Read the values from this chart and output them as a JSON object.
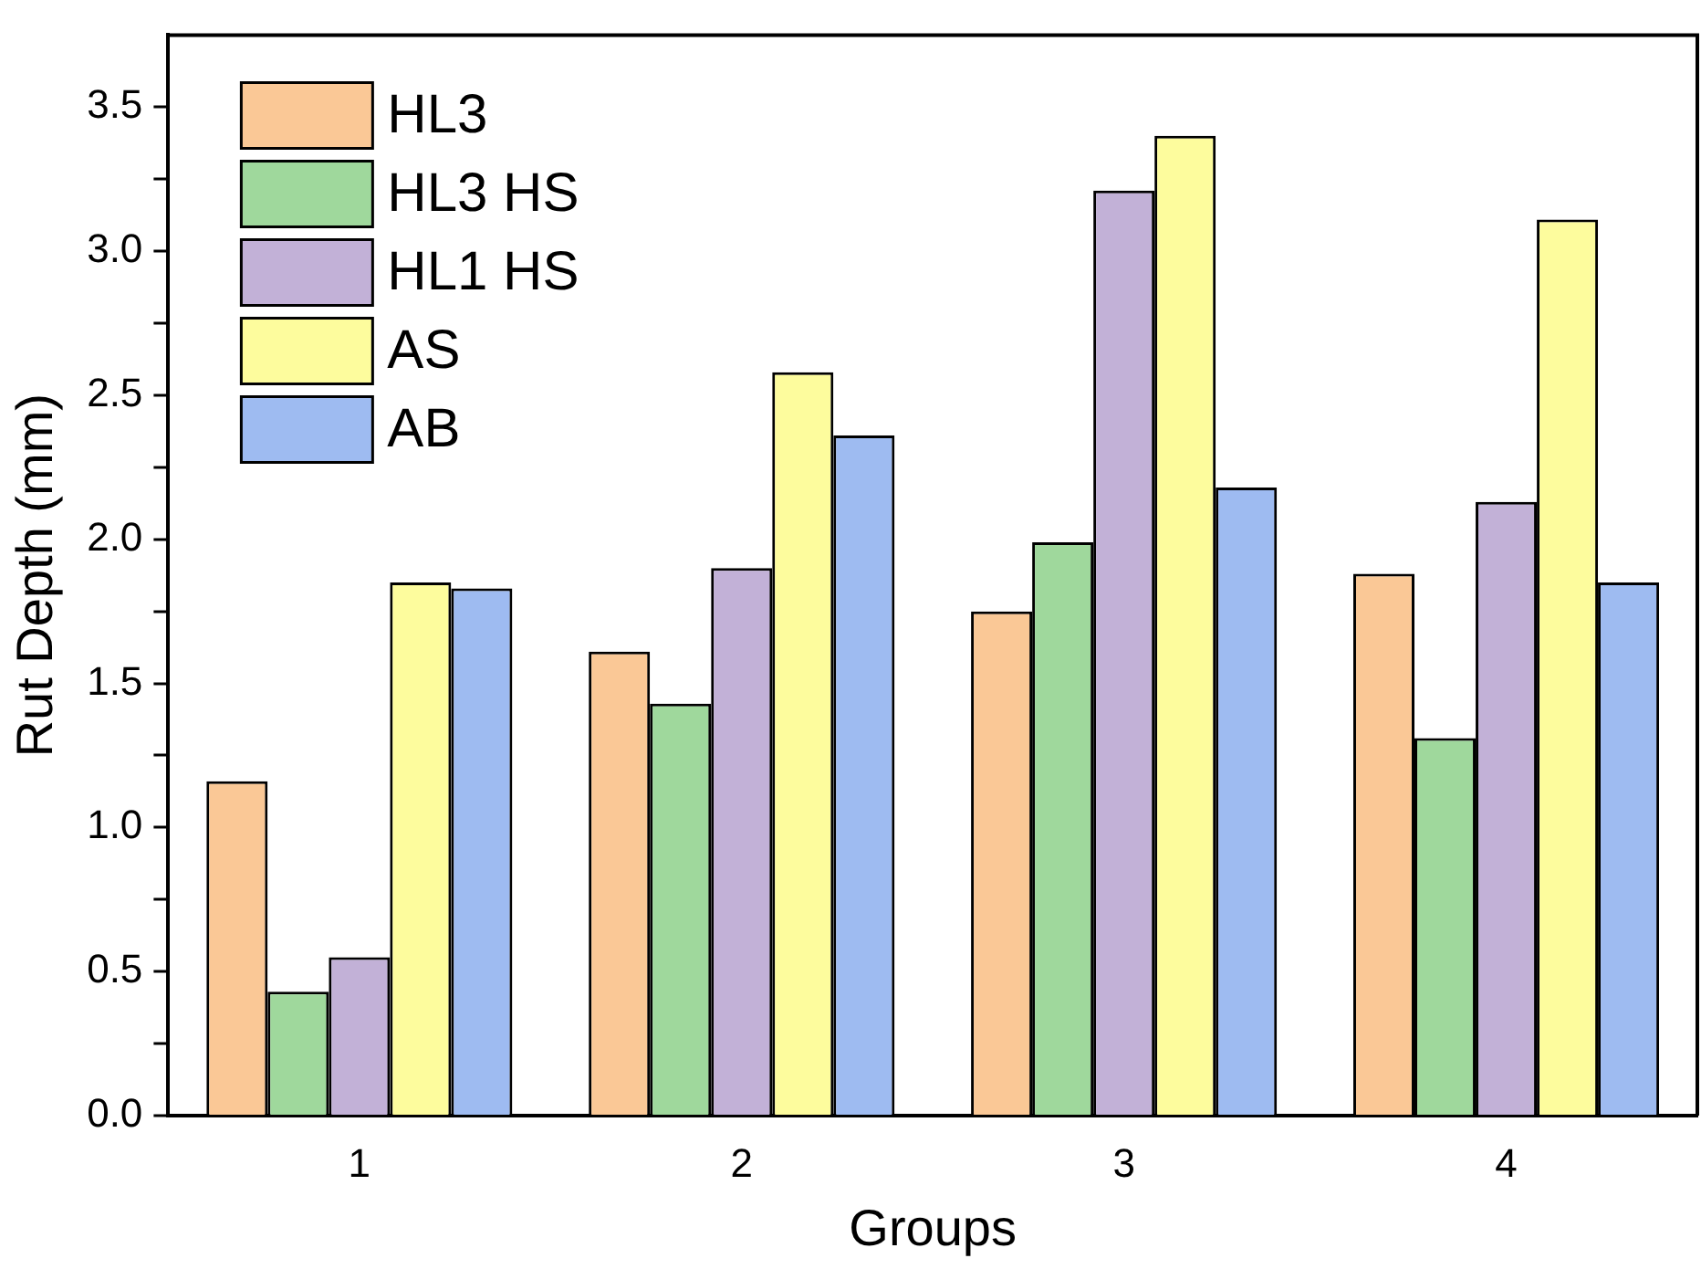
{
  "chart_data": {
    "type": "bar",
    "xlabel": "Groups",
    "ylabel": "Rut Depth (mm)",
    "categories": [
      "1",
      "2",
      "3",
      "4"
    ],
    "series": [
      {
        "name": "HL3",
        "color": "#fac896",
        "values": [
          1.16,
          1.61,
          1.75,
          1.88
        ]
      },
      {
        "name": "HL3 HS",
        "color": "#9fd89c",
        "values": [
          0.43,
          1.43,
          1.99,
          1.31
        ]
      },
      {
        "name": "HL1 HS",
        "color": "#c2b1d7",
        "values": [
          0.55,
          1.9,
          3.21,
          2.13
        ]
      },
      {
        "name": "AS",
        "color": "#fdfc9d",
        "values": [
          1.85,
          2.58,
          3.4,
          3.11
        ]
      },
      {
        "name": "AB",
        "color": "#9ebbf1",
        "values": [
          1.83,
          2.36,
          2.18,
          1.85
        ]
      }
    ],
    "ylim": [
      0,
      3.75
    ],
    "yticks": [
      {
        "value": 0,
        "label": "0.0"
      },
      {
        "value": 0.25,
        "label": null
      },
      0.5,
      {
        "value": 0.75,
        "label": null
      },
      {
        "value": 1,
        "label": "1.0"
      },
      {
        "value": 1.25,
        "label": null
      },
      1.5,
      {
        "value": 1.75,
        "label": null
      },
      {
        "value": 2,
        "label": "2.0"
      },
      {
        "value": 2.25,
        "label": null
      },
      2.5,
      {
        "value": 2.75,
        "label": null
      },
      {
        "value": 3,
        "label": "3.0"
      },
      {
        "value": 3.25,
        "label": null
      },
      3.5
    ],
    "grid": false,
    "legend": "top left"
  }
}
